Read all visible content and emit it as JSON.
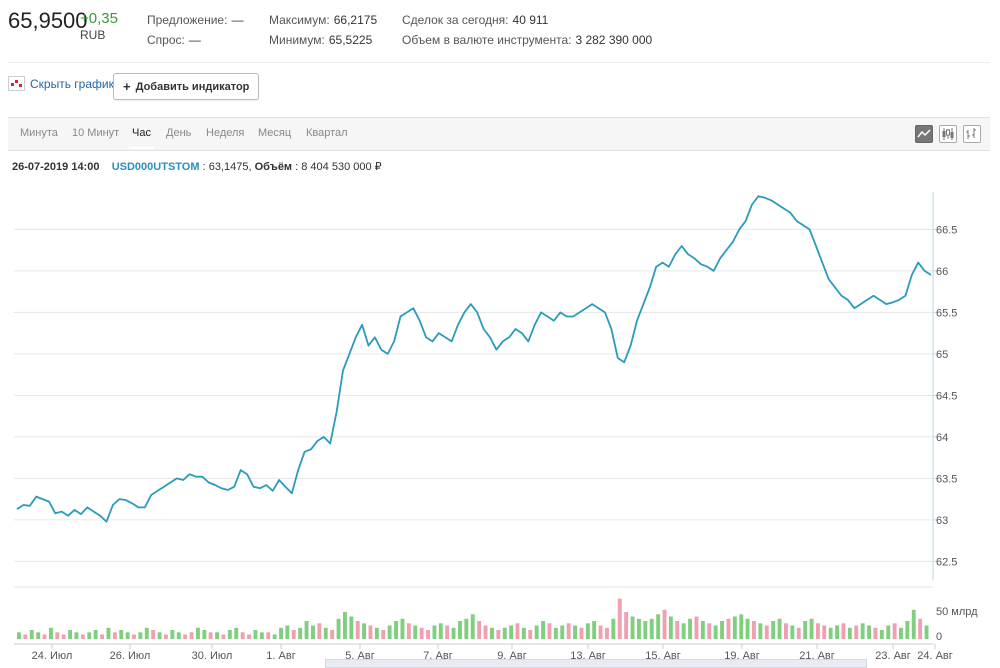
{
  "quote": {
    "price": "65,9500",
    "change": "+0,35",
    "currency": "RUB"
  },
  "stats": {
    "bid_label": "Предложение:",
    "bid_value": "—",
    "ask_label": "Спрос:",
    "ask_value": "—",
    "high_label": "Максимум:",
    "high_value": "66,2175",
    "low_label": "Минимум:",
    "low_value": "65,5225",
    "deals_label": "Сделок за сегодня:",
    "deals_value": "40 911",
    "volume_label": "Объем в валюте инструмента:",
    "volume_value": "3 282 390 000"
  },
  "controls": {
    "hide_chart": "Скрыть график",
    "add_indicator": "Добавить индикатор",
    "add_icon": "plus-icon"
  },
  "tabs": [
    {
      "label": "Минута",
      "active": false
    },
    {
      "label": "10 Минут",
      "active": false
    },
    {
      "label": "Час",
      "active": true
    },
    {
      "label": "День",
      "active": false
    },
    {
      "label": "Неделя",
      "active": false
    },
    {
      "label": "Месяц",
      "active": false
    },
    {
      "label": "Квартал",
      "active": false
    }
  ],
  "chart_types": [
    {
      "icon": "line-chart-icon",
      "active": true
    },
    {
      "icon": "candlestick-icon",
      "active": false
    },
    {
      "icon": "ohlc-bars-icon",
      "active": false
    }
  ],
  "info": {
    "datetime": "26-07-2019 14:00",
    "ticker": "USD000UTSTOM",
    "price_sep": " : 63,1475,",
    "volume_label": "Объём",
    "volume_value": ": 8 404 530 000 ₽"
  },
  "colors": {
    "line": "#2a9bbb",
    "volume_up": "#7fcf7f",
    "volume_down": "#f0a0b0",
    "grid": "#e6e6e6"
  },
  "chart_data": {
    "type": "line",
    "title": "",
    "xlabel": "",
    "ylabel": "",
    "ylim": [
      62.3,
      66.95
    ],
    "yticks": [
      "62.5",
      "63",
      "63.5",
      "64",
      "64.5",
      "65",
      "65.5",
      "66",
      "66.5"
    ],
    "x_tick_labels": [
      "24. Июл",
      "26. Июл",
      "30. Июл",
      "1. Авг",
      "5. Авг",
      "7. Авг",
      "9. Авг",
      "13. Авг",
      "15. Авг",
      "19. Авг",
      "21. Авг",
      "23. Авг",
      "24. Авг"
    ],
    "grid": true,
    "series": [
      {
        "values": [
          63.13,
          63.18,
          63.17,
          63.28,
          63.25,
          63.22,
          63.08,
          63.1,
          63.05,
          63.12,
          63.07,
          63.15,
          63.1,
          63.05,
          62.98,
          63.18,
          63.25,
          63.24,
          63.2,
          63.15,
          63.15,
          63.3,
          63.35,
          63.4,
          63.45,
          63.5,
          63.48,
          63.55,
          63.52,
          63.52,
          63.45,
          63.42,
          63.38,
          63.36,
          63.4,
          63.6,
          63.55,
          63.4,
          63.38,
          63.42,
          63.35,
          63.48,
          63.4,
          63.32,
          63.6,
          63.82,
          63.85,
          63.95,
          64.0,
          63.92,
          64.3,
          64.8,
          65.0,
          65.2,
          65.35,
          65.1,
          65.2,
          65.05,
          65.0,
          65.15,
          65.45,
          65.5,
          65.55,
          65.4,
          65.2,
          65.15,
          65.25,
          65.2,
          65.15,
          65.35,
          65.5,
          65.6,
          65.5,
          65.3,
          65.2,
          65.05,
          65.15,
          65.2,
          65.3,
          65.25,
          65.15,
          65.35,
          65.5,
          65.45,
          65.4,
          65.5,
          65.45,
          65.45,
          65.5,
          65.55,
          65.6,
          65.55,
          65.5,
          65.3,
          64.95,
          64.9,
          65.1,
          65.4,
          65.6,
          65.8,
          66.05,
          66.1,
          66.05,
          66.2,
          66.3,
          66.2,
          66.15,
          66.08,
          66.05,
          66.0,
          66.15,
          66.25,
          66.35,
          66.5,
          66.6,
          66.8,
          66.9,
          66.88,
          66.85,
          66.8,
          66.75,
          66.7,
          66.6,
          66.55,
          66.5,
          66.3,
          66.1,
          65.9,
          65.8,
          65.7,
          65.65,
          65.55,
          65.6,
          65.65,
          65.7,
          65.65,
          65.6,
          65.62,
          65.65,
          65.7,
          65.95,
          66.1,
          66.0,
          65.95
        ]
      }
    ],
    "volume_axis_label": "50 млрд",
    "volume_axis_zero": "0",
    "volume": {
      "values": [
        3,
        2,
        4,
        3,
        2,
        5,
        3,
        2,
        4,
        3,
        2,
        3,
        4,
        2,
        5,
        3,
        4,
        3,
        2,
        3,
        5,
        4,
        3,
        2,
        4,
        3,
        2,
        3,
        5,
        4,
        3,
        3,
        2,
        4,
        5,
        3,
        2,
        4,
        3,
        3,
        2,
        5,
        6,
        4,
        5,
        8,
        6,
        7,
        5,
        4,
        9,
        12,
        10,
        8,
        7,
        6,
        5,
        4,
        6,
        8,
        9,
        7,
        6,
        5,
        4,
        6,
        7,
        6,
        5,
        8,
        9,
        11,
        8,
        6,
        5,
        4,
        5,
        6,
        7,
        5,
        4,
        6,
        8,
        7,
        5,
        6,
        7,
        6,
        5,
        7,
        8,
        6,
        5,
        9,
        18,
        12,
        10,
        9,
        8,
        9,
        11,
        13,
        10,
        8,
        7,
        9,
        10,
        8,
        7,
        6,
        8,
        9,
        10,
        11,
        9,
        8,
        7,
        6,
        8,
        9,
        7,
        6,
        5,
        8,
        9,
        7,
        6,
        5,
        6,
        7,
        5,
        6,
        7,
        6,
        5,
        4,
        6,
        7,
        5,
        8,
        13,
        9,
        6
      ],
      "up": [
        1,
        0,
        1,
        1,
        0,
        1,
        0,
        0,
        1,
        1,
        0,
        1,
        1,
        0,
        1,
        0,
        1,
        1,
        0,
        1,
        1,
        0,
        1,
        0,
        1,
        1,
        0,
        0,
        1,
        1,
        0,
        1,
        0,
        1,
        1,
        0,
        0,
        1,
        1,
        0,
        1,
        1,
        1,
        0,
        1,
        1,
        1,
        0,
        1,
        0,
        1,
        1,
        1,
        0,
        1,
        0,
        1,
        0,
        1,
        1,
        1,
        0,
        1,
        0,
        0,
        1,
        1,
        0,
        1,
        1,
        1,
        1,
        0,
        0,
        1,
        0,
        1,
        1,
        0,
        1,
        0,
        1,
        1,
        0,
        1,
        1,
        0,
        1,
        0,
        1,
        1,
        0,
        0,
        1,
        0,
        0,
        1,
        1,
        1,
        1,
        1,
        0,
        1,
        0,
        1,
        1,
        0,
        1,
        0,
        1,
        1,
        0,
        1,
        1,
        1,
        0,
        1,
        0,
        1,
        1,
        0,
        1,
        0,
        1,
        1,
        0,
        0,
        1,
        1,
        0,
        1,
        0,
        1,
        1,
        0,
        1,
        1,
        0,
        1,
        1,
        1,
        0,
        1
      ]
    }
  }
}
